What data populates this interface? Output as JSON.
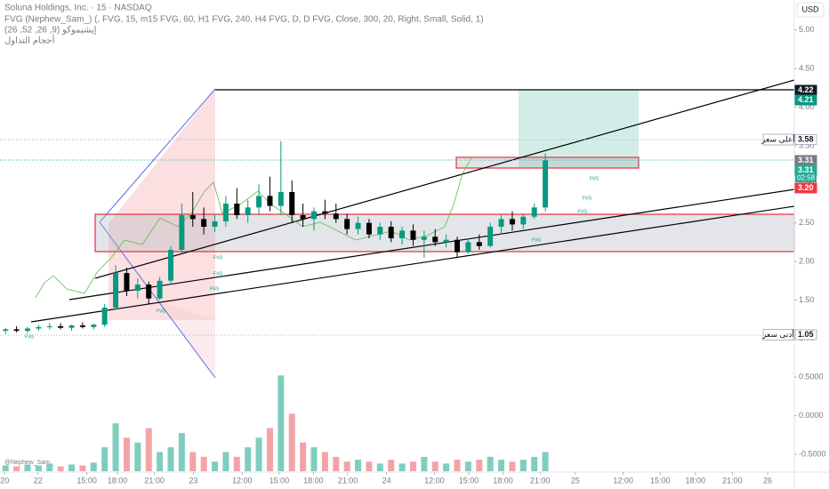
{
  "chart_data": {
    "type": "candlestick",
    "title": "Soluna Holdings, Inc. · 15 · NASDAQ",
    "indicators": [
      "FVG (Nephew_Sam_) (, FVG, 15, m15 FVG, 60, H1 FVG, 240, H4 FVG, D, D FVG, Close, 300, 20, Right, Small, Solid, 1)",
      "إيشيموكو (9, 26, 52, 26)",
      "أحجام التداول"
    ],
    "currency": "USD",
    "watermark": "@Nephew_Sam_",
    "fvg_label": "FVG",
    "up_color": "#089981",
    "down_color": "#000000",
    "series": [
      {
        "name": "open",
        "values": [
          1.1,
          1.12,
          1.1,
          1.13,
          1.15,
          1.16,
          1.14,
          1.17,
          1.15,
          1.18,
          1.4,
          1.85,
          1.62,
          1.7,
          1.52,
          1.75,
          2.15,
          2.6,
          2.55,
          2.45,
          2.52,
          2.75,
          2.6,
          2.7,
          2.85,
          2.72,
          2.9,
          2.6,
          2.55,
          2.65,
          2.62,
          2.55,
          2.42,
          2.5,
          2.35,
          2.45,
          2.3,
          2.4,
          2.28,
          2.32,
          2.25,
          2.28,
          2.12,
          2.25,
          2.2,
          2.45,
          2.55,
          2.48,
          2.58,
          2.7
        ]
      },
      {
        "name": "high",
        "values": [
          1.14,
          1.16,
          1.15,
          1.18,
          1.2,
          1.2,
          1.18,
          1.21,
          1.19,
          1.45,
          1.95,
          1.92,
          1.78,
          1.74,
          1.8,
          2.2,
          2.75,
          2.9,
          2.7,
          2.6,
          2.85,
          2.95,
          2.8,
          3.0,
          3.1,
          3.56,
          3.05,
          2.75,
          2.7,
          2.8,
          2.75,
          2.62,
          2.58,
          2.55,
          2.5,
          2.52,
          2.45,
          2.48,
          2.4,
          2.42,
          2.35,
          2.32,
          2.3,
          2.35,
          2.5,
          2.6,
          2.65,
          2.62,
          2.75,
          3.4
        ]
      },
      {
        "name": "low",
        "values": [
          1.06,
          1.08,
          1.07,
          1.1,
          1.12,
          1.12,
          1.1,
          1.13,
          1.12,
          1.15,
          1.38,
          1.55,
          1.52,
          1.45,
          1.5,
          1.7,
          2.1,
          2.45,
          2.35,
          2.38,
          2.45,
          2.55,
          2.5,
          2.6,
          2.65,
          2.6,
          2.5,
          2.45,
          2.4,
          2.55,
          2.5,
          2.35,
          2.35,
          2.3,
          2.28,
          2.25,
          2.22,
          2.2,
          2.05,
          2.2,
          2.18,
          2.05,
          2.1,
          2.15,
          2.18,
          2.35,
          2.4,
          2.42,
          2.55,
          2.65
        ]
      },
      {
        "name": "close",
        "values": [
          1.12,
          1.1,
          1.13,
          1.15,
          1.16,
          1.14,
          1.17,
          1.15,
          1.18,
          1.4,
          1.85,
          1.62,
          1.7,
          1.52,
          1.75,
          2.15,
          2.6,
          2.55,
          2.45,
          2.52,
          2.75,
          2.6,
          2.7,
          2.85,
          2.72,
          2.9,
          2.6,
          2.55,
          2.65,
          2.62,
          2.55,
          2.42,
          2.5,
          2.35,
          2.45,
          2.3,
          2.4,
          2.28,
          2.32,
          2.25,
          2.28,
          2.12,
          2.25,
          2.2,
          2.45,
          2.55,
          2.48,
          2.58,
          2.7,
          3.31
        ]
      }
    ],
    "volume": [
      6,
      5,
      7,
      6,
      8,
      5,
      7,
      6,
      9,
      25,
      50,
      35,
      30,
      45,
      20,
      25,
      40,
      20,
      15,
      10,
      20,
      15,
      25,
      35,
      45,
      100,
      60,
      30,
      25,
      20,
      15,
      10,
      12,
      10,
      8,
      12,
      8,
      10,
      15,
      10,
      8,
      12,
      10,
      12,
      15,
      12,
      10,
      12,
      15,
      20
    ],
    "volume_lim": [
      0,
      130
    ],
    "xlim": [
      -0.5,
      71.6
    ],
    "xticks": [
      {
        "value": -0.08,
        "label": "20"
      },
      {
        "value": 2.95,
        "label": "22"
      },
      {
        "value": 7.38,
        "label": "15:00"
      },
      {
        "value": 10.16,
        "label": "18:00"
      },
      {
        "value": 13.52,
        "label": "21:00"
      },
      {
        "value": 17.05,
        "label": "23"
      },
      {
        "value": 21.48,
        "label": "12:00"
      },
      {
        "value": 24.84,
        "label": "15:00"
      },
      {
        "value": 27.95,
        "label": "18:00"
      },
      {
        "value": 31.07,
        "label": "21:00"
      },
      {
        "value": 34.59,
        "label": "24"
      },
      {
        "value": 38.93,
        "label": "12:00"
      },
      {
        "value": 42.05,
        "label": "15:00"
      },
      {
        "value": 45.16,
        "label": "18:00"
      },
      {
        "value": 48.52,
        "label": "21:00"
      },
      {
        "value": 51.72,
        "label": "25"
      },
      {
        "value": 56.07,
        "label": "12:00"
      },
      {
        "value": 59.43,
        "label": "15:00"
      },
      {
        "value": 62.62,
        "label": "18:00"
      },
      {
        "value": 65.98,
        "label": "21:00"
      },
      {
        "value": 69.18,
        "label": "26"
      }
    ],
    "ylim": [
      -0.72,
      5.39
    ],
    "yticks": [
      {
        "value": 5,
        "label": "5.00"
      },
      {
        "value": 4.5,
        "label": "4.50"
      },
      {
        "value": 4,
        "label": "4.00"
      },
      {
        "value": 3.5,
        "label": "3.50"
      },
      {
        "value": 3,
        "label": "3.00"
      },
      {
        "value": 2.5,
        "label": "2.50"
      },
      {
        "value": 2,
        "label": "2.00"
      },
      {
        "value": 1.5,
        "label": "1.50"
      },
      {
        "value": 1,
        "label": "1.00"
      },
      {
        "value": 0.5,
        "label": "0.5000"
      },
      {
        "value": 0,
        "label": "0.0000"
      },
      {
        "value": -0.5,
        "label": "-0.5000"
      }
    ],
    "price_labels": [
      {
        "value": 4.22,
        "label": "4.22",
        "color": "#131722"
      },
      {
        "value": 4.21,
        "label": "4.21",
        "color": "#089981"
      },
      {
        "value": 3.58,
        "label": "3.58",
        "color": "#ffffff"
      },
      {
        "value": 3.31,
        "label": "3.31",
        "color": "#787b86"
      },
      {
        "value": 3.31,
        "label": "3.31",
        "color": "#22ab94"
      },
      {
        "value": 3.2,
        "label": "3.20",
        "color": "#f23645"
      },
      {
        "value": 1.05,
        "label": "1.05",
        "color": "#ffffff"
      }
    ],
    "countdown": "02:58",
    "high_label": "أعلى سعر",
    "low_label": "أدنى سعر"
  }
}
